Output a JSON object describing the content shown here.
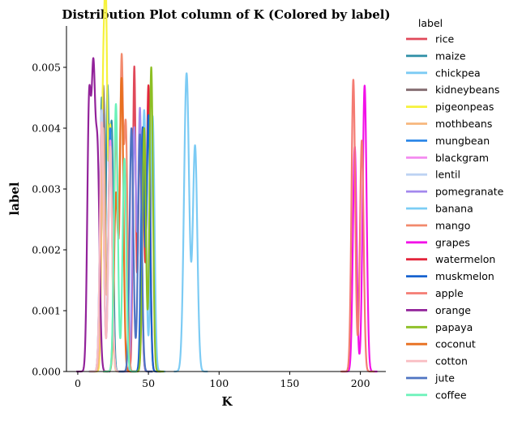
{
  "chart_data": {
    "type": "line",
    "title": "Distribution Plot column of K (Colored by label)",
    "xlabel": "K",
    "ylabel": "label",
    "xlim": [
      -8,
      218
    ],
    "ylim": [
      0,
      0.00568
    ],
    "xticks": [
      0,
      50,
      100,
      150,
      200
    ],
    "xtick_labels": [
      "0",
      "50",
      "100",
      "150",
      "200"
    ],
    "yticks": [
      0,
      0.001,
      0.002,
      0.003,
      0.004,
      0.005
    ],
    "ytick_labels": [
      "0.000",
      "0.001",
      "0.002",
      "0.003",
      "0.004",
      "0.005"
    ],
    "grid": false,
    "legend": {
      "title": "label",
      "placement": "outside-right"
    },
    "series": [
      {
        "name": "rice",
        "color": "#e0495a",
        "peaks": [
          [
            40,
            0.005,
            1.0
          ],
          [
            44,
            0.0038,
            1.2
          ]
        ]
      },
      {
        "name": "maize",
        "color": "#2e8fa6",
        "peaks": [
          [
            17,
            0.0045,
            1.1
          ],
          [
            21,
            0.0046,
            1.1
          ],
          [
            24,
            0.004,
            1.1
          ]
        ]
      },
      {
        "name": "chickpea",
        "color": "#7ccbf4",
        "peaks": [
          [
            77,
            0.0049,
            1.8
          ],
          [
            83,
            0.0037,
            1.6
          ]
        ]
      },
      {
        "name": "kidneybeans",
        "color": "#826a6f",
        "peaks": [
          [
            18,
            0.0047,
            1.3
          ],
          [
            23,
            0.0038,
            1.3
          ]
        ]
      },
      {
        "name": "pigeonpeas",
        "color": "#f6f23c",
        "peaks": [
          [
            18,
            0.0045,
            1.1
          ],
          [
            20,
            0.0052,
            1.0
          ],
          [
            23,
            0.004,
            1.2
          ]
        ]
      },
      {
        "name": "mothbeans",
        "color": "#f7b77d",
        "peaks": [
          [
            18,
            0.004,
            1.3
          ],
          [
            23,
            0.004,
            1.3
          ]
        ]
      },
      {
        "name": "mungbean",
        "color": "#2f88e8",
        "peaks": [
          [
            17,
            0.0043,
            1.3
          ],
          [
            23,
            0.004,
            1.3
          ]
        ]
      },
      {
        "name": "blackgram",
        "color": "#f48df0",
        "peaks": [
          [
            17,
            0.0043,
            1.3
          ],
          [
            23,
            0.0038,
            1.3
          ]
        ]
      },
      {
        "name": "lentil",
        "color": "#bdd3f3",
        "peaks": [
          [
            17,
            0.0043,
            1.3
          ],
          [
            23,
            0.0036,
            1.3
          ]
        ]
      },
      {
        "name": "pomegranate",
        "color": "#a388ed",
        "peaks": [
          [
            40,
            0.004,
            1.3
          ],
          [
            44,
            0.0043,
            1.2
          ]
        ]
      },
      {
        "name": "banana",
        "color": "#7ccdf5",
        "peaks": [
          [
            47,
            0.0043,
            1.3
          ],
          [
            53,
            0.0042,
            1.3
          ]
        ]
      },
      {
        "name": "mango",
        "color": "#f28a6d",
        "peaks": [
          [
            27,
            0.004,
            1.3
          ],
          [
            31,
            0.005,
            1.1
          ],
          [
            34,
            0.004,
            1.2
          ]
        ]
      },
      {
        "name": "grapes",
        "color": "#f212e8",
        "peaks": [
          [
            196,
            0.0037,
            1.3
          ],
          [
            203,
            0.0047,
            1.4
          ]
        ]
      },
      {
        "name": "watermelon",
        "color": "#e3253b",
        "peaks": [
          [
            46,
            0.0035,
            1.1
          ],
          [
            50,
            0.0047,
            1.2
          ]
        ]
      },
      {
        "name": "muskmelon",
        "color": "#1863cf",
        "peaks": [
          [
            46,
            0.004,
            1.2
          ],
          [
            50,
            0.0042,
            1.2
          ]
        ]
      },
      {
        "name": "apple",
        "color": "#f47b72",
        "peaks": [
          [
            195,
            0.0048,
            1.3
          ],
          [
            201,
            0.0038,
            1.3
          ]
        ]
      },
      {
        "name": "orange",
        "color": "#92229a",
        "peaks": [
          [
            8,
            0.0043,
            1.3
          ],
          [
            11,
            0.0045,
            1.3
          ],
          [
            14,
            0.0035,
            1.4
          ]
        ]
      },
      {
        "name": "papaya",
        "color": "#8dbf24",
        "peaks": [
          [
            47,
            0.004,
            1.2
          ],
          [
            52,
            0.005,
            1.2
          ]
        ]
      },
      {
        "name": "coconut",
        "color": "#e87020",
        "peaks": [
          [
            27,
            0.0029,
            1.3
          ],
          [
            31,
            0.0048,
            1.3
          ]
        ]
      },
      {
        "name": "cotton",
        "color": "#f9bcc2",
        "peaks": [
          [
            17,
            0.0041,
            1.3
          ],
          [
            23,
            0.0037,
            1.3
          ]
        ]
      },
      {
        "name": "jute",
        "color": "#4f74c2",
        "peaks": [
          [
            38,
            0.004,
            1.3
          ],
          [
            44,
            0.0039,
            1.3
          ]
        ]
      },
      {
        "name": "coffee",
        "color": "#6bf2b9",
        "peaks": [
          [
            27,
            0.0044,
            1.3
          ],
          [
            33,
            0.0035,
            1.3
          ]
        ]
      }
    ]
  }
}
